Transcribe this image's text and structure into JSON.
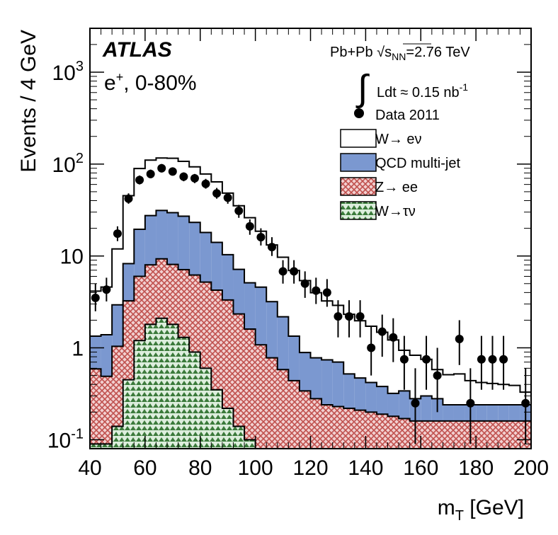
{
  "chart_data": {
    "type": "stacked-step-histogram",
    "title": "",
    "experiment": "ATLAS",
    "channel": "e+, 0-80%",
    "collision": "Pb+Pb √sNN=2.76 TeV",
    "luminosity": "∫Ldt ≈ 0.15 nb⁻¹",
    "xlabel": "m_T [GeV]",
    "ylabel": "Events / 4 GeV",
    "xlim": [
      40,
      200
    ],
    "ylim": [
      0.08,
      3000
    ],
    "yscale": "log",
    "legend_position": "top-right",
    "x_ticks": [
      "40",
      "60",
      "80",
      "100",
      "120",
      "140",
      "160",
      "180",
      "200"
    ],
    "y_ticks": [
      {
        "value": 0.1,
        "base": "10",
        "exp": "-1"
      },
      {
        "value": 1,
        "base": "1",
        "exp": ""
      },
      {
        "value": 10,
        "base": "10",
        "exp": ""
      },
      {
        "value": 100,
        "base": "10",
        "exp": "2"
      },
      {
        "value": 1000,
        "base": "10",
        "exp": "3"
      }
    ],
    "bin_edges": [
      40,
      44,
      48,
      52,
      56,
      60,
      64,
      68,
      72,
      76,
      80,
      84,
      88,
      92,
      96,
      100,
      104,
      108,
      112,
      116,
      120,
      124,
      128,
      132,
      136,
      140,
      144,
      148,
      152,
      156,
      160,
      164,
      168,
      172,
      176,
      180,
      184,
      188,
      192,
      196,
      200
    ],
    "series": [
      {
        "name": "W→τν",
        "role": "stack",
        "fill": "#ddeedd",
        "hatch": "#3a7a3a",
        "values": [
          0.09,
          0.09,
          0.14,
          0.45,
          1.2,
          1.8,
          2.1,
          1.8,
          1.3,
          0.9,
          0.6,
          0.35,
          0.22,
          0.14,
          0.1,
          0.08,
          0.08,
          0.08,
          0.08,
          0.08,
          0.08,
          0.08,
          0.08,
          0.08,
          0.08,
          0.08,
          0.08,
          0.08,
          0.08,
          0.08,
          0.08,
          0.08,
          0.08,
          0.08,
          0.08,
          0.08,
          0.08,
          0.08,
          0.08,
          0.08
        ]
      },
      {
        "name": "Z→ ee",
        "role": "stack",
        "fill": "#f2d0d0",
        "hatch": "#c0504d",
        "values": [
          0.5,
          0.4,
          0.9,
          2.8,
          4.8,
          6.2,
          7.2,
          6.3,
          5.8,
          5.3,
          4.6,
          3.9,
          3.1,
          2.2,
          1.5,
          1.0,
          0.7,
          0.5,
          0.36,
          0.26,
          0.2,
          0.16,
          0.15,
          0.14,
          0.13,
          0.12,
          0.11,
          0.1,
          0.09,
          0.08,
          0.08,
          0.08,
          0.08,
          0.08,
          0.08,
          0.08,
          0.08,
          0.08,
          0.08,
          0.08
        ]
      },
      {
        "name": "QCD multi-jet",
        "role": "stack",
        "fill": "#7b98d0",
        "values": [
          0.75,
          0.9,
          1.9,
          5.0,
          13.5,
          19.5,
          22.0,
          21.5,
          20.0,
          17.0,
          12.8,
          9.8,
          7.0,
          4.8,
          3.5,
          3.5,
          2.4,
          1.6,
          0.9,
          0.55,
          0.5,
          0.5,
          0.47,
          0.3,
          0.26,
          0.22,
          0.19,
          0.14,
          0.17,
          0.12,
          0.14,
          0.12,
          0.08,
          0.08,
          0.08,
          0.08,
          0.08,
          0.08,
          0.08,
          0.08
        ]
      },
      {
        "name": "W→ eν",
        "role": "stack",
        "fill": "#ffffff",
        "values": [
          2.8,
          3.2,
          9.0,
          37.0,
          70.0,
          83.0,
          85.0,
          86.0,
          80.0,
          70.0,
          60.0,
          50.0,
          38.0,
          28.0,
          21.0,
          14.0,
          10.0,
          7.5,
          5.6,
          4.5,
          3.2,
          2.5,
          2.2,
          1.8,
          1.5,
          1.3,
          1.1,
          0.9,
          0.6,
          0.55,
          0.45,
          0.3,
          0.27,
          0.28,
          0.2,
          0.18,
          0.17,
          0.16,
          0.15,
          0.09
        ]
      },
      {
        "name": "Data 2011",
        "role": "data",
        "points": [
          {
            "x": 42,
            "y": 3.5,
            "lo": 2.5,
            "hi": 5.0
          },
          {
            "x": 46,
            "y": 4.3,
            "lo": 3.2,
            "hi": 5.8
          },
          {
            "x": 50,
            "y": 17.5,
            "lo": 14.5,
            "hi": 21
          },
          {
            "x": 54,
            "y": 42,
            "lo": 37,
            "hi": 48
          },
          {
            "x": 58,
            "y": 67,
            "lo": 60,
            "hi": 75
          },
          {
            "x": 62,
            "y": 78,
            "lo": 70,
            "hi": 87
          },
          {
            "x": 66,
            "y": 90,
            "lo": 81,
            "hi": 100
          },
          {
            "x": 70,
            "y": 83,
            "lo": 75,
            "hi": 92
          },
          {
            "x": 74,
            "y": 73,
            "lo": 65,
            "hi": 81
          },
          {
            "x": 78,
            "y": 70,
            "lo": 62,
            "hi": 78
          },
          {
            "x": 82,
            "y": 61,
            "lo": 54,
            "hi": 69
          },
          {
            "x": 86,
            "y": 48,
            "lo": 42,
            "hi": 55
          },
          {
            "x": 90,
            "y": 43,
            "lo": 37,
            "hi": 49
          },
          {
            "x": 94,
            "y": 31,
            "lo": 26,
            "hi": 36
          },
          {
            "x": 98,
            "y": 21,
            "lo": 17,
            "hi": 25
          },
          {
            "x": 102,
            "y": 16,
            "lo": 13,
            "hi": 20
          },
          {
            "x": 106,
            "y": 12.5,
            "lo": 10,
            "hi": 16
          },
          {
            "x": 110,
            "y": 6.8,
            "lo": 5,
            "hi": 9
          },
          {
            "x": 114,
            "y": 6.8,
            "lo": 5,
            "hi": 9
          },
          {
            "x": 118,
            "y": 5.0,
            "lo": 3.5,
            "hi": 6.8
          },
          {
            "x": 122,
            "y": 4.2,
            "lo": 3,
            "hi": 5.8
          },
          {
            "x": 126,
            "y": 4.0,
            "lo": 2.8,
            "hi": 5.6
          },
          {
            "x": 130,
            "y": 2.2,
            "lo": 1.3,
            "hi": 3.3
          },
          {
            "x": 134,
            "y": 2.2,
            "lo": 1.3,
            "hi": 3.3
          },
          {
            "x": 138,
            "y": 2.2,
            "lo": 1.3,
            "hi": 3.3
          },
          {
            "x": 142,
            "y": 1.0,
            "lo": 0.5,
            "hi": 1.7
          },
          {
            "x": 146,
            "y": 1.5,
            "lo": 0.8,
            "hi": 2.3
          },
          {
            "x": 150,
            "y": 1.3,
            "lo": 0.7,
            "hi": 2.1
          },
          {
            "x": 154,
            "y": 0.75,
            "lo": 0.35,
            "hi": 1.35
          },
          {
            "x": 158,
            "y": 0.25,
            "lo": 0.09,
            "hi": 0.6
          },
          {
            "x": 162,
            "y": 0.75,
            "lo": 0.35,
            "hi": 1.35
          },
          {
            "x": 166,
            "y": 0.5,
            "lo": 0.2,
            "hi": 1.0
          },
          {
            "x": 174,
            "y": 1.25,
            "lo": 0.65,
            "hi": 2.0
          },
          {
            "x": 178,
            "y": 0.25,
            "lo": 0.09,
            "hi": 0.6
          },
          {
            "x": 182,
            "y": 0.75,
            "lo": 0.35,
            "hi": 1.35
          },
          {
            "x": 186,
            "y": 0.75,
            "lo": 0.35,
            "hi": 1.35
          },
          {
            "x": 190,
            "y": 0.75,
            "lo": 0.35,
            "hi": 1.35
          },
          {
            "x": 198,
            "y": 0.25,
            "lo": 0.09,
            "hi": 0.6
          }
        ]
      }
    ]
  }
}
